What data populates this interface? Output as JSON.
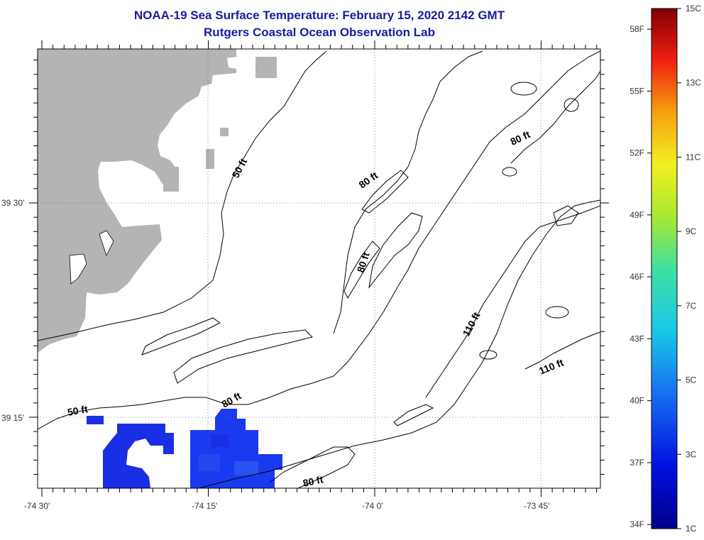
{
  "header": {
    "title": "NOAA-19 Sea Surface Temperature:  February 15, 2020 2142 GMT",
    "subtitle": "Rutgers Coastal Ocean Observation Lab"
  },
  "map": {
    "lat_labels": [
      "39 30'",
      "39 15'"
    ],
    "lon_labels": [
      "-74 30'",
      "-74 15'",
      "-74 0'",
      "-73 45'"
    ],
    "contour_labels": {
      "c50_a": "50 ft",
      "c50_b": "50 ft",
      "c80_a": "80 ft",
      "c80_b": "80 ft",
      "c80_c": "80 ft",
      "c80_d": "80 ft",
      "c80_e": "80 ft",
      "c110_a": "110 ft",
      "c110_b": "110 ft"
    },
    "colors": {
      "land": "#b4b4b4",
      "sst_blue": "#1a2ee6",
      "contour": "#000000"
    }
  },
  "colorbar": {
    "f_labels": [
      "58F",
      "55F",
      "52F",
      "49F",
      "46F",
      "43F",
      "40F",
      "37F",
      "34F"
    ],
    "c_labels": [
      "15C",
      "13C",
      "11C",
      "9C",
      "7C",
      "5C",
      "3C",
      "1C"
    ],
    "range_c": [
      1,
      15
    ]
  }
}
